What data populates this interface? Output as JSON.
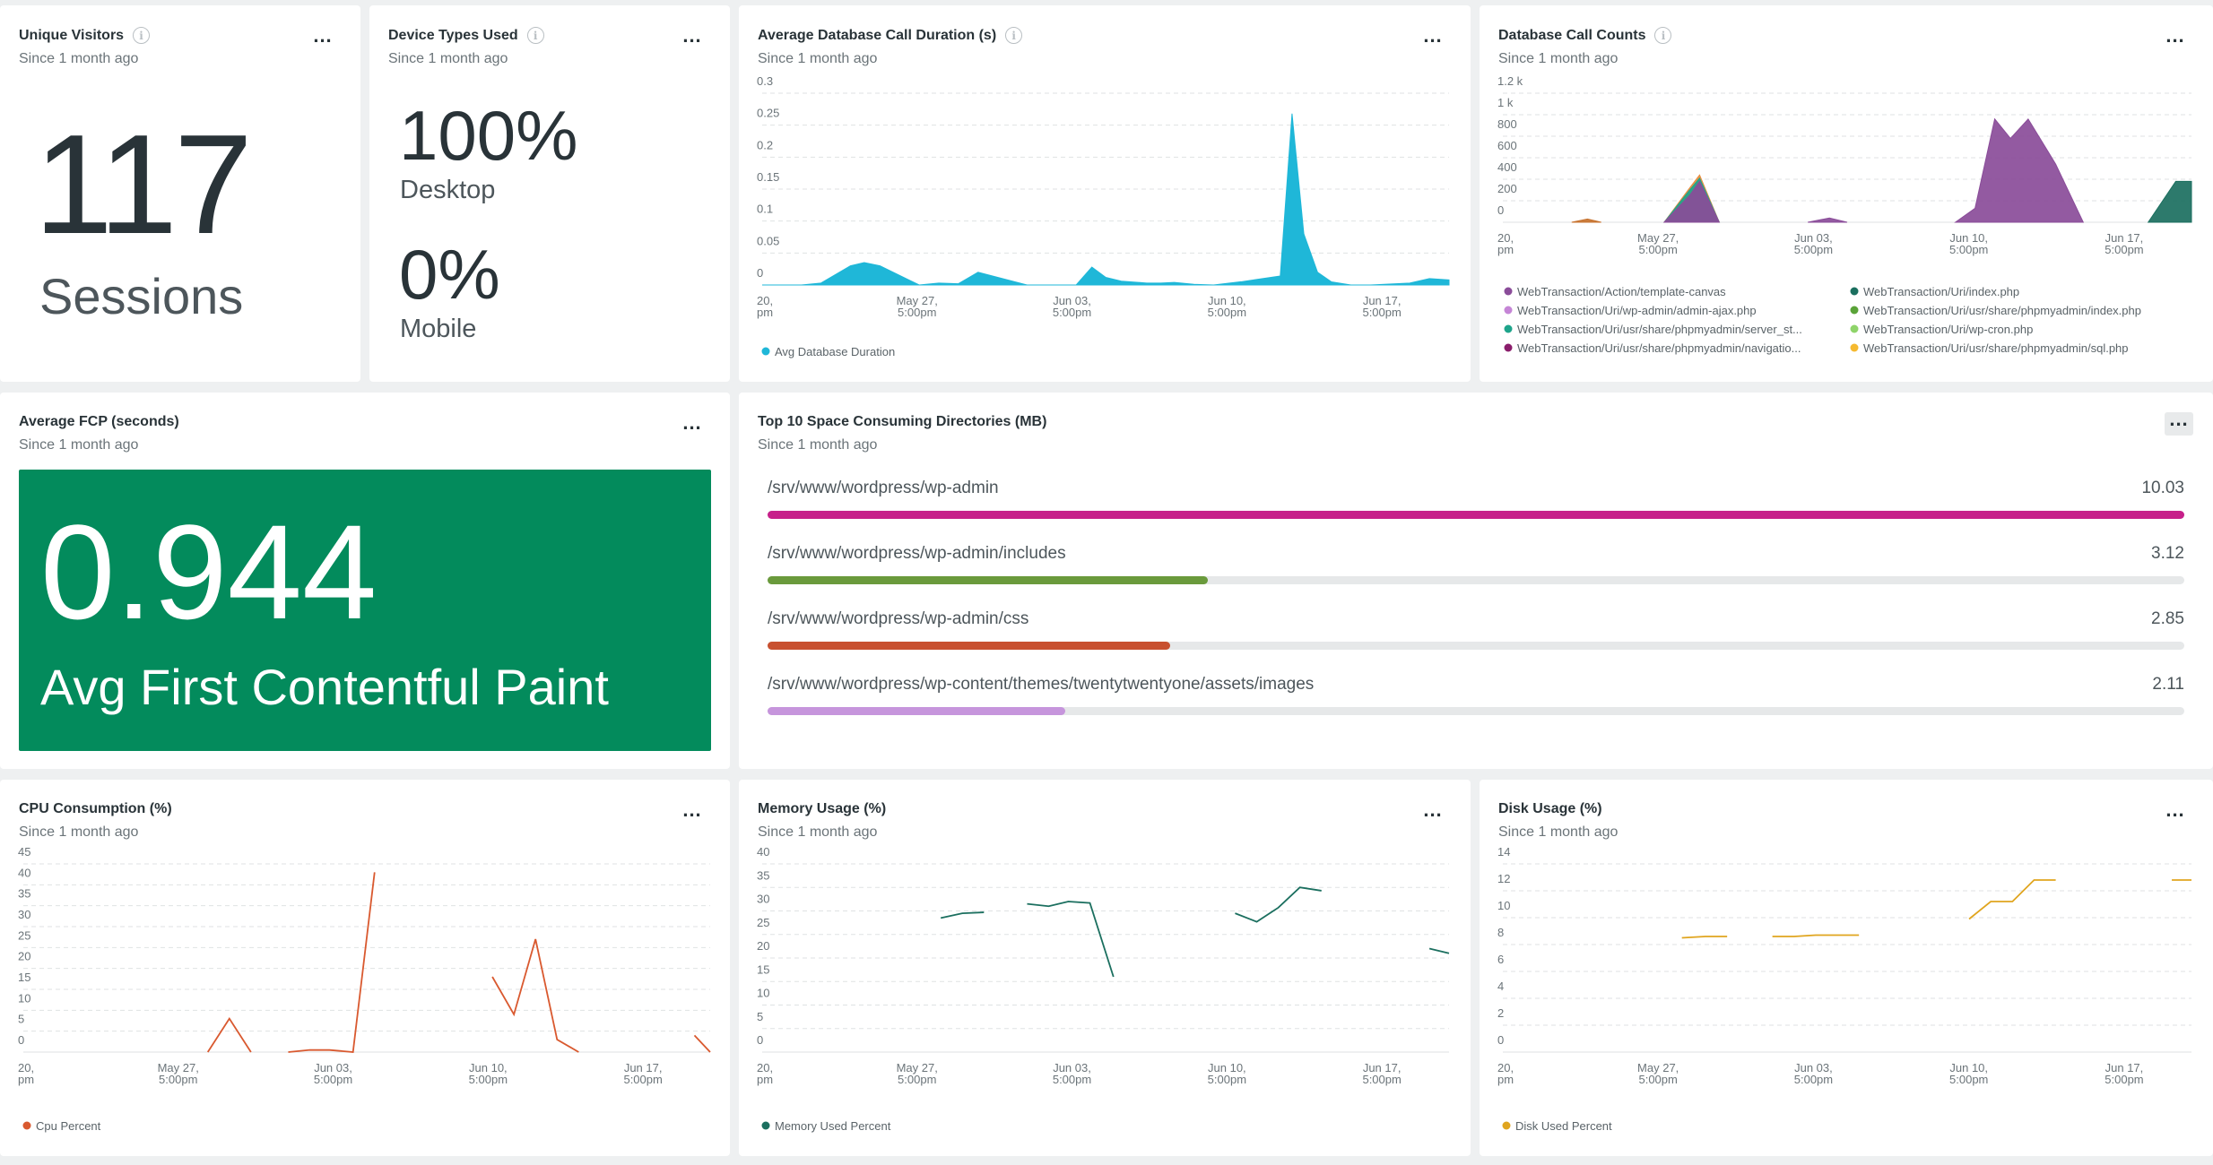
{
  "cards": {
    "unique_visitors": {
      "title": "Unique Visitors",
      "subtitle": "Since 1 month ago",
      "value": "117",
      "label": "Sessions"
    },
    "device_types": {
      "title": "Device Types Used",
      "subtitle": "Since 1 month ago",
      "items": [
        {
          "value": "100%",
          "label": "Desktop"
        },
        {
          "value": "0%",
          "label": "Mobile"
        }
      ]
    },
    "avg_db_duration": {
      "title": "Average Database Call Duration (s)",
      "subtitle": "Since 1 month ago",
      "legend": "Avg Database Duration"
    },
    "db_call_counts": {
      "title": "Database Call Counts",
      "subtitle": "Since 1 month ago"
    },
    "avg_fcp": {
      "title": "Average FCP (seconds)",
      "subtitle": "Since 1 month ago",
      "value": "0.944",
      "label": "Avg First Contentful Paint",
      "color": "#038b5c"
    },
    "top_dirs": {
      "title": "Top 10 Space Consuming Directories (MB)",
      "subtitle": "Since 1 month ago"
    },
    "cpu": {
      "title": "CPU Consumption (%)",
      "subtitle": "Since 1 month ago",
      "legend": "Cpu Percent"
    },
    "memory": {
      "title": "Memory Usage (%)",
      "subtitle": "Since 1 month ago",
      "legend": "Memory Used Percent"
    },
    "disk": {
      "title": "Disk Usage (%)",
      "subtitle": "Since 1 month ago",
      "legend": "Disk Used Percent"
    }
  },
  "menu_label": "...",
  "info_icon": "i",
  "chart_data": [
    {
      "id": "avg_db_duration",
      "type": "area",
      "color": "#1fb7d8",
      "x_ticks": [
        [
          "20,",
          "pm"
        ],
        [
          "May 27,",
          "5:00pm"
        ],
        [
          "Jun 03,",
          "5:00pm"
        ],
        [
          "Jun 10,",
          "5:00pm"
        ],
        [
          "Jun 17,",
          "5:00pm"
        ]
      ],
      "y_ticks": [
        "0",
        "0.05",
        "0.1",
        "0.15",
        "0.2",
        "0.25",
        "0.3"
      ],
      "ylim": [
        0,
        0.3
      ],
      "x": [
        0,
        2,
        3,
        4.5,
        5.2,
        6,
        8,
        9,
        10,
        11,
        13.5,
        16,
        16.8,
        17.5,
        18.3,
        19.6,
        20.3,
        21,
        22,
        23,
        24.4,
        25.5,
        26.4,
        27,
        27.6,
        28.3,
        29,
        30,
        31,
        33,
        34,
        35
      ],
      "y": [
        0,
        0,
        0.003,
        0.03,
        0.035,
        0.03,
        0,
        0.003,
        0.002,
        0.02,
        0,
        0,
        0.028,
        0.012,
        0.006,
        0.003,
        0.003,
        0.004,
        0.001,
        0,
        0.005,
        0.01,
        0.014,
        0.268,
        0.08,
        0.02,
        0.005,
        0,
        0,
        0.003,
        0.01,
        0.008
      ],
      "xmax": 35,
      "series_name": "Avg Database Duration"
    },
    {
      "id": "db_call_counts",
      "type": "area",
      "x_ticks": [
        [
          "20,",
          "pm"
        ],
        [
          "May 27,",
          "5:00pm"
        ],
        [
          "Jun 03,",
          "5:00pm"
        ],
        [
          "Jun 10,",
          "5:00pm"
        ],
        [
          "Jun 17,",
          "5:00pm"
        ]
      ],
      "y_ticks": [
        "0",
        "200",
        "400",
        "600",
        "800",
        "1 k",
        "1.2 k"
      ],
      "ylim": [
        0,
        1200
      ],
      "xmax": 35,
      "series": [
        {
          "name": "WebTransaction/Action/template-canvas",
          "color": "#c7722e",
          "x": [
            3.5,
            4.3,
            5.0
          ],
          "y": [
            0,
            30,
            0
          ]
        },
        {
          "name": "WebTransaction/Uri/wp-admin/admin-ajax.php",
          "color": "#e98d3e",
          "x": [
            8.2,
            9.5,
            10.0,
            11.0
          ],
          "y": [
            0,
            320,
            440,
            0
          ]
        },
        {
          "name": "WebTransaction/Uri/usr/share/phpmyadmin/server_st...",
          "color": "#1ea48b",
          "x": [
            8.2,
            9.5,
            10.0,
            11.0
          ],
          "y": [
            0,
            300,
            410,
            0
          ]
        },
        {
          "name": "WebTransaction/Uri/usr/share/phpmyadmin/navigatio...",
          "color": "#8a4c99",
          "x": [
            8.2,
            9.5,
            10.0,
            11.0
          ],
          "y": [
            0,
            250,
            380,
            0
          ]
        },
        {
          "name": "WebTransaction/Uri/usr/share/phpmyadmin/sql.php",
          "color": "#8a4c99",
          "x": [
            15.5,
            16.6,
            17.5
          ],
          "y": [
            0,
            40,
            0
          ]
        },
        {
          "name": "WebTransaction/Uri/usr/share/phpmyadmin/index.php",
          "color": "#8a4c99",
          "x": [
            23.0,
            24.0,
            25.0,
            25.8,
            26.7,
            28.1,
            29.5
          ],
          "y": [
            0,
            130,
            960,
            780,
            960,
            540,
            0
          ]
        },
        {
          "name": "WebTransaction/Uri/index.php",
          "color": "#1b6f5f",
          "x": [
            32.8,
            34.2,
            35.0
          ],
          "y": [
            0,
            380,
            380
          ]
        }
      ],
      "legend": [
        {
          "name": "WebTransaction/Action/template-canvas",
          "color": "#8a4c99"
        },
        {
          "name": "WebTransaction/Uri/index.php",
          "color": "#1b6f5f"
        },
        {
          "name": "WebTransaction/Uri/wp-admin/admin-ajax.php",
          "color": "#c585d6"
        },
        {
          "name": "WebTransaction/Uri/usr/share/phpmyadmin/index.php",
          "color": "#5aa338"
        },
        {
          "name": "WebTransaction/Uri/usr/share/phpmyadmin/server_st...",
          "color": "#1ea48b"
        },
        {
          "name": "WebTransaction/Uri/wp-cron.php",
          "color": "#8fd46a"
        },
        {
          "name": "WebTransaction/Uri/usr/share/phpmyadmin/navigatio...",
          "color": "#8a1d6b"
        },
        {
          "name": "WebTransaction/Uri/usr/share/phpmyadmin/sql.php",
          "color": "#f5b930"
        }
      ]
    },
    {
      "id": "top_dirs",
      "type": "bar",
      "categories": [
        "/srv/www/wordpress/wp-admin",
        "/srv/www/wordpress/wp-admin/includes",
        "/srv/www/wordpress/wp-admin/css",
        "/srv/www/wordpress/wp-content/themes/twentytwentyone/assets/images"
      ],
      "values": [
        10.03,
        3.12,
        2.85,
        2.11
      ],
      "value_labels": [
        "10.03",
        "3.12",
        "2.85",
        "2.11"
      ],
      "colors": [
        "#c7208a",
        "#6a9a3c",
        "#c8502f",
        "#c695dc"
      ],
      "xlim": [
        0,
        10.03
      ]
    },
    {
      "id": "cpu",
      "type": "line",
      "color": "#d9592f",
      "x_ticks": [
        [
          "20,",
          "pm"
        ],
        [
          "May 27,",
          "5:00pm"
        ],
        [
          "Jun 03,",
          "5:00pm"
        ],
        [
          "Jun 10,",
          "5:00pm"
        ],
        [
          "Jun 17,",
          "5:00pm"
        ]
      ],
      "y_ticks": [
        "0",
        "5",
        "10",
        "15",
        "20",
        "25",
        "30",
        "35",
        "40",
        "45"
      ],
      "ylim": [
        0,
        45
      ],
      "xmax": 35,
      "segments": [
        {
          "x": [
            9.4,
            10.5,
            11.6
          ],
          "y": [
            0,
            8,
            0
          ]
        },
        {
          "x": [
            13.5,
            14.6,
            15.6,
            16.8,
            17.9
          ],
          "y": [
            0,
            0.5,
            0.5,
            0,
            43
          ]
        },
        {
          "x": [
            23.9,
            25.0,
            26.1,
            27.2,
            28.3
          ],
          "y": [
            18,
            9,
            27,
            3,
            0
          ]
        },
        {
          "x": [
            34.2,
            35.0
          ],
          "y": [
            4,
            0
          ]
        }
      ],
      "series_name": "Cpu Percent"
    },
    {
      "id": "memory",
      "type": "line",
      "color": "#1b6f5f",
      "x_ticks": [
        [
          "20,",
          "pm"
        ],
        [
          "May 27,",
          "5:00pm"
        ],
        [
          "Jun 03,",
          "5:00pm"
        ],
        [
          "Jun 10,",
          "5:00pm"
        ],
        [
          "Jun 17,",
          "5:00pm"
        ]
      ],
      "y_ticks": [
        "0",
        "5",
        "10",
        "15",
        "20",
        "25",
        "30",
        "35",
        "40"
      ],
      "ylim": [
        0,
        40
      ],
      "xmax": 35,
      "segments": [
        {
          "x": [
            9.1,
            10.2,
            11.3
          ],
          "y": [
            28.5,
            29.5,
            29.7
          ]
        },
        {
          "x": [
            13.5,
            14.6,
            15.6,
            16.7,
            17.9
          ],
          "y": [
            31.5,
            31,
            32,
            31.7,
            16
          ]
        },
        {
          "x": [
            24.1,
            25.2,
            26.3,
            27.4,
            28.5
          ],
          "y": [
            29.5,
            27.7,
            30.7,
            35,
            34.3
          ]
        },
        {
          "x": [
            34.0,
            35.0
          ],
          "y": [
            22,
            21
          ]
        }
      ],
      "series_name": "Memory Used Percent"
    },
    {
      "id": "disk",
      "type": "line",
      "color": "#e0a51f",
      "x_ticks": [
        [
          "20,",
          "pm"
        ],
        [
          "May 27,",
          "5:00pm"
        ],
        [
          "Jun 03,",
          "5:00pm"
        ],
        [
          "Jun 10,",
          "5:00pm"
        ],
        [
          "Jun 17,",
          "5:00pm"
        ]
      ],
      "y_ticks": [
        "0",
        "2",
        "4",
        "6",
        "8",
        "10",
        "12",
        "14"
      ],
      "ylim": [
        0,
        14
      ],
      "xmax": 35,
      "segments": [
        {
          "x": [
            9.1,
            10.3,
            11.4
          ],
          "y": [
            8.5,
            8.6,
            8.6
          ]
        },
        {
          "x": [
            13.7,
            14.8,
            15.9,
            17.0,
            18.1
          ],
          "y": [
            8.6,
            8.6,
            8.7,
            8.7,
            8.7
          ]
        },
        {
          "x": [
            23.7,
            24.8,
            25.9,
            27.0,
            28.1
          ],
          "y": [
            9.9,
            11.2,
            11.2,
            12.8,
            12.8
          ]
        },
        {
          "x": [
            34.0,
            35.0
          ],
          "y": [
            12.8,
            12.8
          ]
        }
      ],
      "series_name": "Disk Used Percent"
    }
  ]
}
